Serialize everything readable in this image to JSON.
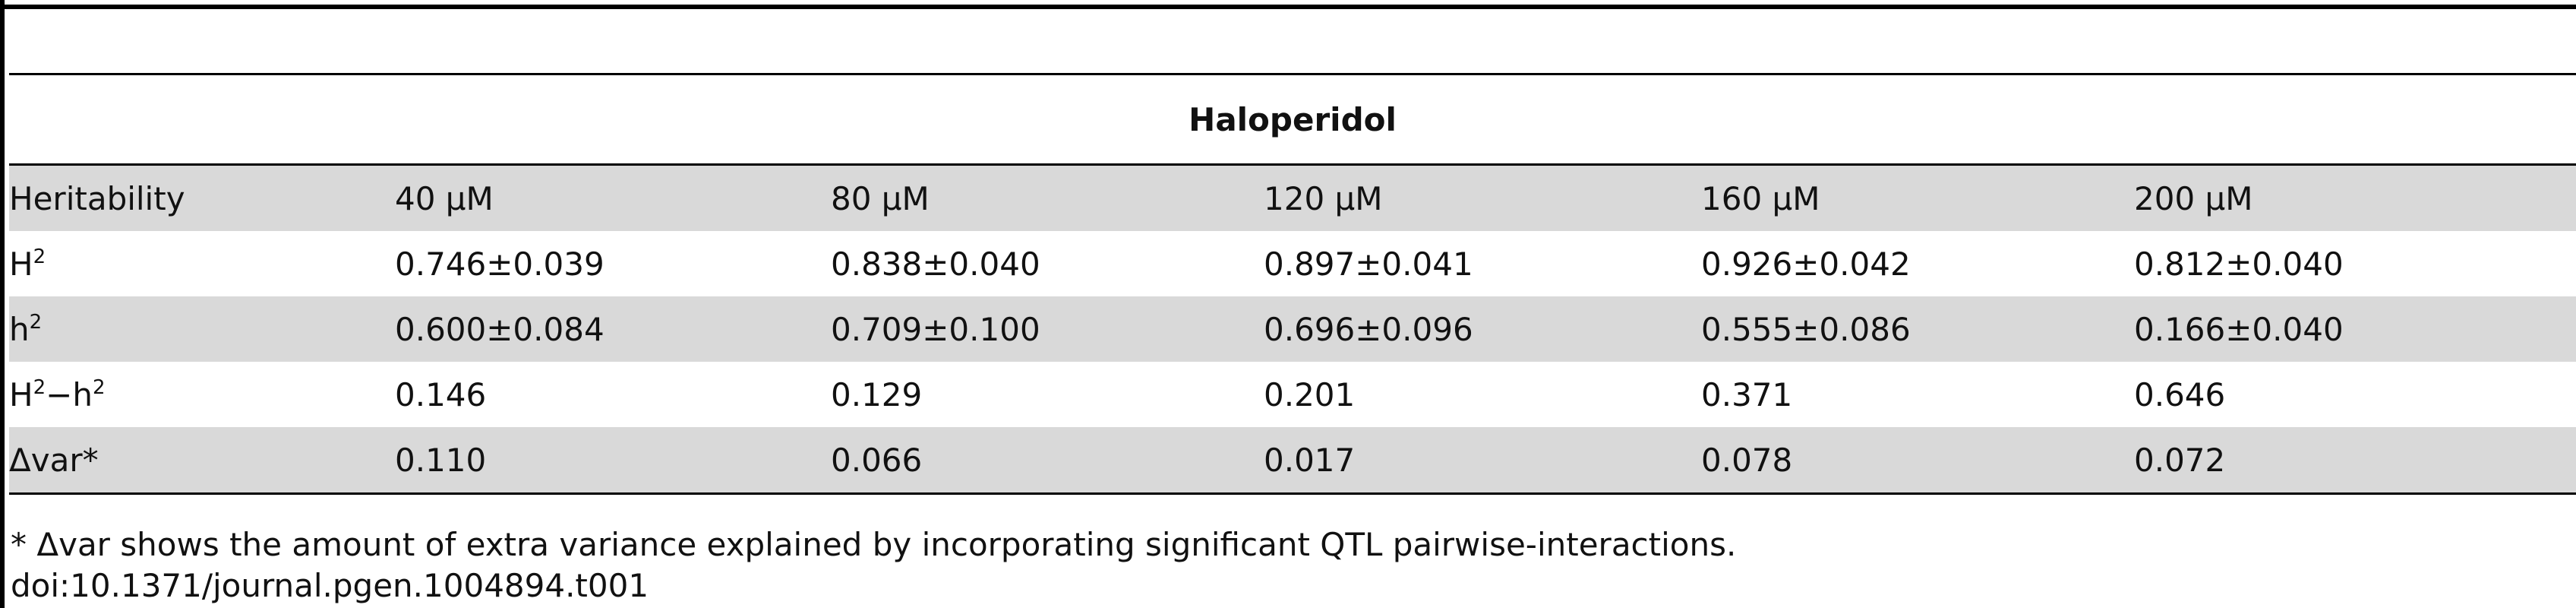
{
  "table": {
    "group_header": "Haloperidol",
    "columns": [
      "Heritability",
      "40 μM",
      "80 μM",
      "120 μM",
      "160 μM",
      "200 μM"
    ],
    "rows": [
      {
        "label_main": "H",
        "label_sup": "2",
        "label_tail": "",
        "label_tail_sup": "",
        "values": [
          "0.746±0.039",
          "0.838±0.040",
          "0.897±0.041",
          "0.926±0.042",
          "0.812±0.040"
        ]
      },
      {
        "label_main": "h",
        "label_sup": "2",
        "label_tail": "",
        "label_tail_sup": "",
        "values": [
          "0.600±0.084",
          "0.709±0.100",
          "0.696±0.096",
          "0.555±0.086",
          "0.166±0.040"
        ]
      },
      {
        "label_main": "H",
        "label_sup": "2",
        "label_tail": "−h",
        "label_tail_sup": "2",
        "values": [
          "0.146",
          "0.129",
          "0.201",
          "0.371",
          "0.646"
        ]
      },
      {
        "label_main": "Δvar*",
        "label_sup": "",
        "label_tail": "",
        "label_tail_sup": "",
        "values": [
          "0.110",
          "0.066",
          "0.017",
          "0.078",
          "0.072"
        ]
      }
    ]
  },
  "footnote": "* Δvar shows the amount of extra variance explained by incorporating significant QTL pairwise-interactions.",
  "doi": "doi:10.1371/journal.pgen.1004894.t001"
}
